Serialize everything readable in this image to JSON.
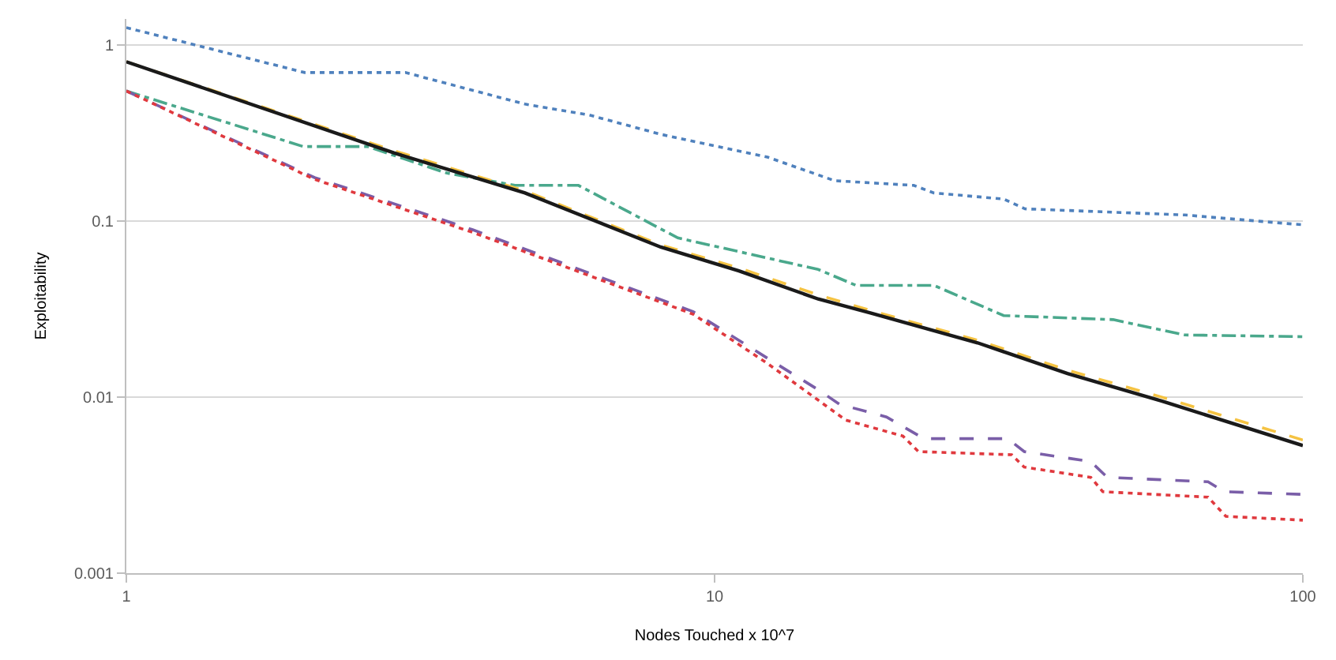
{
  "chart_data": {
    "type": "line",
    "xlabel": "Nodes Touched x 10^7",
    "ylabel": "Exploitability",
    "log": "xy",
    "grid": "y",
    "marker": "none",
    "xlim": [
      1,
      100
    ],
    "xticks": [
      1,
      10,
      100
    ],
    "ylim": [
      0.001,
      1.4
    ],
    "yticks": [
      0.001,
      0.01,
      0.1,
      1
    ],
    "series": [
      {
        "color": "#4f81bd",
        "line_style": "dotted",
        "x": [
          1,
          2.01,
          2.98,
          4.76,
          6.1,
          8.1,
          12.3,
          16,
          21.8,
          23.6,
          31,
          33.7,
          63,
          96,
          100
        ],
        "values": [
          1.25,
          0.695,
          0.695,
          0.46,
          0.4,
          0.31,
          0.23,
          0.169,
          0.159,
          0.144,
          0.133,
          0.117,
          0.108,
          0.096,
          0.095
        ]
      },
      {
        "color": "#4aa88c",
        "line_style": "dashdot",
        "x": [
          1,
          2,
          2.57,
          3.5,
          4.58,
          5.87,
          8.66,
          15,
          17.4,
          23.6,
          31,
          47.6,
          63,
          100
        ],
        "values": [
          0.546,
          0.264,
          0.264,
          0.187,
          0.159,
          0.159,
          0.08,
          0.053,
          0.043,
          0.043,
          0.029,
          0.0275,
          0.0225,
          0.022
        ]
      },
      {
        "color": "#f5c342",
        "line_style": "dashed",
        "x": [
          1,
          2.85,
          4.76,
          8.1,
          11,
          15,
          18.4,
          28,
          39.8,
          57.5,
          100
        ],
        "values": [
          0.8,
          0.25,
          0.148,
          0.073,
          0.054,
          0.038,
          0.031,
          0.021,
          0.0142,
          0.01,
          0.0057
        ]
      },
      {
        "color": "#1a1a1a",
        "line_style": "solid",
        "x": [
          1,
          2.85,
          4.76,
          8.1,
          11,
          15,
          18.4,
          28,
          39.8,
          57.5,
          100
        ],
        "values": [
          0.8,
          0.243,
          0.144,
          0.071,
          0.052,
          0.036,
          0.03,
          0.0203,
          0.0136,
          0.0095,
          0.0053
        ]
      },
      {
        "color": "#7a5ea8",
        "line_style": "dashed",
        "x": [
          1,
          2.09,
          3.88,
          9.2,
          12.3,
          15,
          16.3,
          19.6,
          22.7,
          31.5,
          33.6,
          43.6,
          46.5,
          69,
          73.5,
          100
        ],
        "values": [
          0.546,
          0.176,
          0.089,
          0.0305,
          0.0166,
          0.011,
          0.0091,
          0.0077,
          0.0058,
          0.0058,
          0.0049,
          0.0043,
          0.0035,
          0.0033,
          0.0029,
          0.0028
        ]
      },
      {
        "color": "#e0393e",
        "line_style": "dotted",
        "x": [
          1,
          2.09,
          3.88,
          9.2,
          12.3,
          15,
          16.7,
          20.9,
          22.2,
          32,
          33.6,
          43.6,
          45.7,
          69,
          74,
          100
        ],
        "values": [
          0.546,
          0.172,
          0.086,
          0.0295,
          0.0155,
          0.0096,
          0.0074,
          0.006,
          0.0049,
          0.0047,
          0.004,
          0.0035,
          0.0029,
          0.0027,
          0.0021,
          0.002
        ]
      }
    ]
  }
}
